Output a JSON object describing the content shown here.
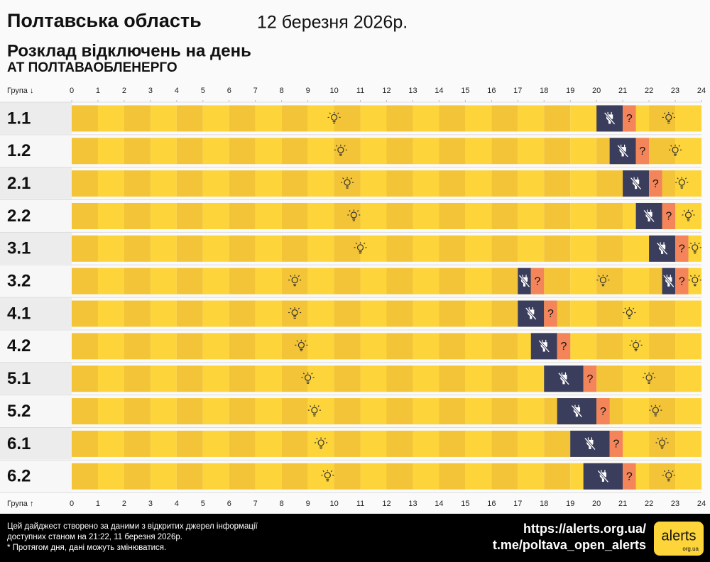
{
  "chart_data": {
    "type": "schedule",
    "title": "Полтавська область",
    "date": "12 березня 2026р.",
    "subtitle": "Розклад відключень на день",
    "company": "АТ ПОЛТАВАОБЛЕНЕРГО",
    "group_label_top": "Група ↓",
    "group_label_bottom": "Група ↑",
    "unknown_symbol": "?",
    "xlim": [
      0,
      24
    ],
    "xticks": [
      0,
      1,
      2,
      3,
      4,
      5,
      6,
      7,
      8,
      9,
      10,
      11,
      12,
      13,
      14,
      15,
      16,
      17,
      18,
      19,
      20,
      21,
      22,
      23,
      24
    ],
    "colors": {
      "on": [
        "#f3c437",
        "#fdd43a"
      ],
      "outage": "#3b3d5c",
      "uncertain": "#f4855a"
    },
    "series": [
      {
        "name": "1.1",
        "outages": [
          [
            20,
            21
          ]
        ],
        "uncertain": [
          [
            21,
            21.5
          ]
        ]
      },
      {
        "name": "1.2",
        "outages": [
          [
            20.5,
            21.5
          ]
        ],
        "uncertain": [
          [
            21.5,
            22
          ]
        ]
      },
      {
        "name": "2.1",
        "outages": [
          [
            21,
            22
          ]
        ],
        "uncertain": [
          [
            22,
            22.5
          ]
        ]
      },
      {
        "name": "2.2",
        "outages": [
          [
            21.5,
            22.5
          ]
        ],
        "uncertain": [
          [
            22.5,
            23
          ]
        ]
      },
      {
        "name": "3.1",
        "outages": [
          [
            22,
            23
          ]
        ],
        "uncertain": [
          [
            23,
            23.5
          ]
        ]
      },
      {
        "name": "3.2",
        "outages": [
          [
            17,
            17.5
          ],
          [
            22.5,
            23
          ]
        ],
        "uncertain": [
          [
            17.5,
            18
          ],
          [
            23,
            23.5
          ]
        ]
      },
      {
        "name": "4.1",
        "outages": [
          [
            17,
            18
          ]
        ],
        "uncertain": [
          [
            18,
            18.5
          ]
        ]
      },
      {
        "name": "4.2",
        "outages": [
          [
            17.5,
            18.5
          ]
        ],
        "uncertain": [
          [
            18.5,
            19
          ]
        ]
      },
      {
        "name": "5.1",
        "outages": [
          [
            18,
            19.5
          ]
        ],
        "uncertain": [
          [
            19.5,
            20
          ]
        ]
      },
      {
        "name": "5.2",
        "outages": [
          [
            18.5,
            20
          ]
        ],
        "uncertain": [
          [
            20,
            20.5
          ]
        ]
      },
      {
        "name": "6.1",
        "outages": [
          [
            19,
            20.5
          ]
        ],
        "uncertain": [
          [
            20.5,
            21
          ]
        ]
      },
      {
        "name": "6.2",
        "outages": [
          [
            19.5,
            21
          ]
        ],
        "uncertain": [
          [
            21,
            21.5
          ]
        ]
      }
    ],
    "footer": {
      "notes": [
        "Цей дайджест створено за даними з відкритих джерел інформації",
        "доступних станом на 21:22, 11 березня 2026р.",
        "* Протягом дня, дані можуть змінюватися."
      ],
      "links": [
        "https://alerts.org.ua/",
        "t.me/poltava_open_alerts"
      ],
      "logo": "alerts",
      "logo_domain": "org.ua"
    }
  }
}
